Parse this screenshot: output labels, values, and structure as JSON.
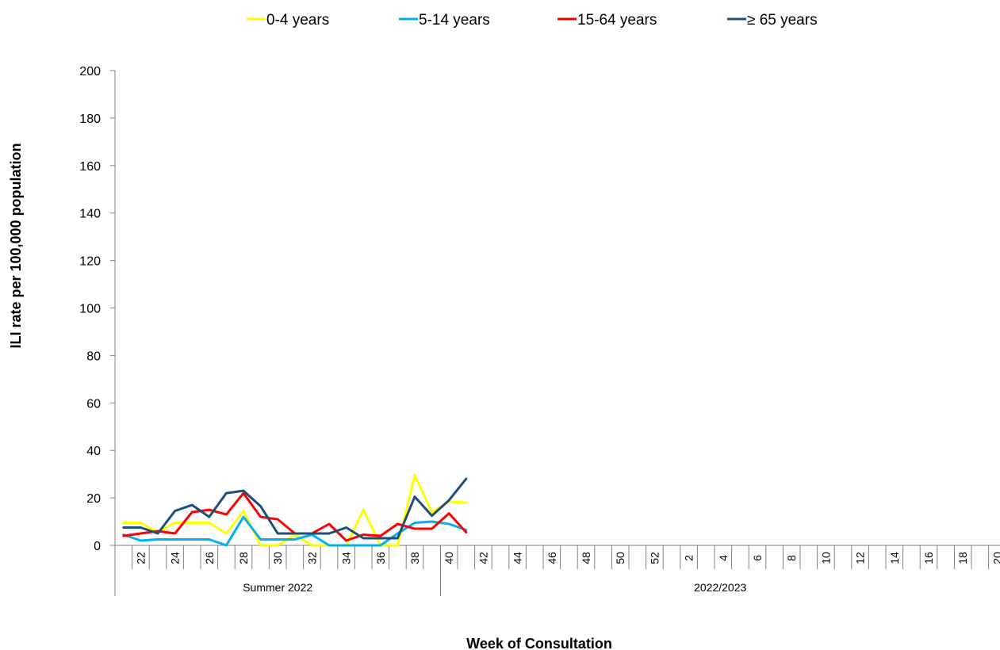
{
  "chart_data": {
    "type": "line",
    "title": "",
    "xlabel": "Week of Consultation",
    "ylabel": "ILI rate per 100,000 population",
    "ylim": [
      0,
      200
    ],
    "yticks": [
      "0",
      "20",
      "40",
      "60",
      "80",
      "100",
      "120",
      "140",
      "160",
      "180",
      "200"
    ],
    "x_tick_labels": [
      "22",
      "24",
      "26",
      "28",
      "30",
      "32",
      "34",
      "36",
      "38",
      "40",
      "42",
      "44",
      "46",
      "48",
      "50",
      "52",
      "2",
      "4",
      "6",
      "8",
      "10",
      "12",
      "14",
      "16",
      "18",
      "20"
    ],
    "periods": [
      {
        "label": "Summer 2022",
        "first_week": 21,
        "last_week": 39
      },
      {
        "label": "2022/2023",
        "first_week": 40,
        "last_week": 20
      }
    ],
    "x": [
      21,
      22,
      23,
      24,
      25,
      26,
      27,
      28,
      29,
      30,
      31,
      32,
      33,
      34,
      35,
      36,
      37,
      38,
      39,
      40,
      41
    ],
    "legend_position": "top",
    "grid": false,
    "series": [
      {
        "name": "0-4 years",
        "color": "#FFFF00",
        "values": [
          9.5,
          9.5,
          5.5,
          9.5,
          9.5,
          9.5,
          5,
          14.5,
          0,
          0,
          4.5,
          0,
          0,
          0,
          15,
          0,
          0,
          29.5,
          14,
          18.5,
          18
        ]
      },
      {
        "name": "5-14 years",
        "color": "#00B0F0",
        "values": [
          4.5,
          2,
          2.5,
          2.5,
          2.5,
          2.5,
          0,
          12,
          2.5,
          2.5,
          2.5,
          4.5,
          0,
          0,
          0,
          0,
          5,
          9.5,
          10,
          9,
          6.5
        ]
      },
      {
        "name": "15-64 years",
        "color": "#FF0000",
        "values": [
          4,
          5,
          6,
          5,
          14,
          15,
          13,
          22,
          12,
          11,
          5,
          5,
          9,
          2,
          4.5,
          4,
          9,
          7,
          7,
          13.5,
          5.5
        ]
      },
      {
        "name": "≥ 65 years",
        "color": "#1F4E79",
        "values": [
          7.5,
          7.5,
          5,
          14.5,
          17,
          12,
          22,
          23,
          16.5,
          5,
          5,
          5,
          5,
          7.5,
          3,
          3,
          3,
          20.5,
          12.5,
          19,
          28
        ]
      }
    ]
  }
}
